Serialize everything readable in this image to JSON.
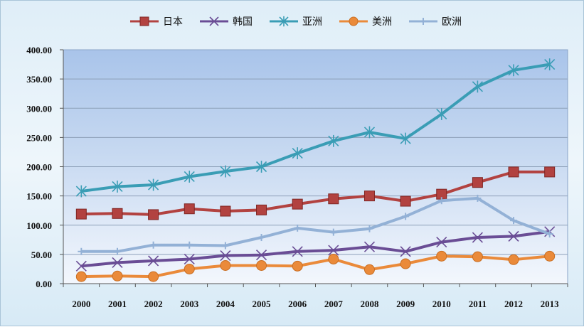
{
  "chart_data": {
    "type": "line",
    "title": "",
    "xlabel": "",
    "ylabel": "",
    "categories": [
      "2000",
      "2001",
      "2002",
      "2003",
      "2004",
      "2005",
      "2006",
      "2007",
      "2008",
      "2009",
      "2010",
      "2011",
      "2012",
      "2013"
    ],
    "ylim": [
      0,
      400
    ],
    "yticks": [
      "0.00",
      "50.00",
      "100.00",
      "150.00",
      "200.00",
      "250.00",
      "300.00",
      "350.00",
      "400.00"
    ],
    "grid": "horizontal",
    "legend_position": "top",
    "series": [
      {
        "name": "日本",
        "color": "#b24240",
        "marker": "square",
        "values": [
          119,
          120,
          118,
          128,
          124,
          126,
          136,
          145,
          150,
          141,
          153,
          173,
          191,
          191
        ]
      },
      {
        "name": "韩国",
        "color": "#6a4d95",
        "marker": "x",
        "values": [
          30,
          36,
          39,
          42,
          48,
          49,
          55,
          57,
          63,
          55,
          71,
          79,
          81,
          89
        ]
      },
      {
        "name": "亚洲",
        "color": "#3a9db5",
        "marker": "star",
        "values": [
          158,
          166,
          169,
          183,
          192,
          200,
          223,
          244,
          259,
          248,
          290,
          337,
          365,
          375
        ]
      },
      {
        "name": "美洲",
        "color": "#ea8a3a",
        "marker": "circle",
        "values": [
          12,
          13,
          12,
          25,
          31,
          31,
          30,
          42,
          24,
          34,
          47,
          46,
          41,
          47
        ]
      },
      {
        "name": "欧洲",
        "color": "#93b1d6",
        "marker": "plus",
        "values": [
          55,
          55,
          66,
          66,
          65,
          79,
          95,
          88,
          94,
          115,
          142,
          146,
          108,
          85
        ]
      }
    ]
  }
}
